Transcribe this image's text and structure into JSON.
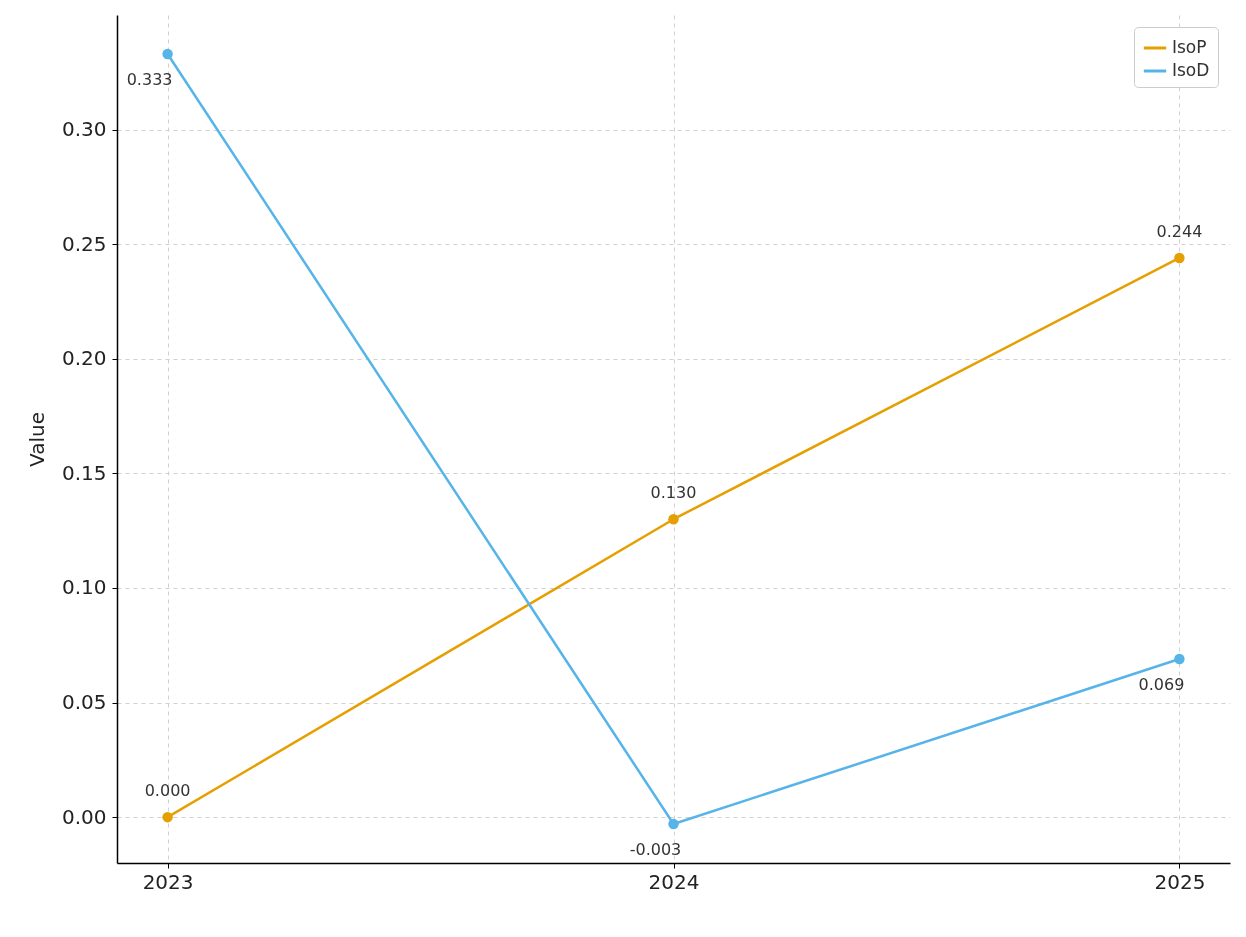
{
  "chart_data": {
    "type": "line",
    "ylabel": "Value",
    "categories": [
      "2023",
      "2024",
      "2025"
    ],
    "series": [
      {
        "name": "IsoP",
        "color": "#e69f00",
        "values": [
          0,
          0.13,
          0.244
        ],
        "value_labels": [
          "0.000",
          "0.130",
          "0.244"
        ]
      },
      {
        "name": "IsoD",
        "color": "#56b4e9",
        "values": [
          0.333,
          -0.003,
          0.069
        ],
        "value_labels": [
          "0.333",
          "-0.003",
          "0.069"
        ]
      }
    ],
    "ylim": [
      -0.02,
      0.35
    ],
    "yticks": [
      {
        "value": 0,
        "label": "0.00"
      },
      {
        "value": 0.05,
        "label": "0.05"
      },
      {
        "value": 0.1,
        "label": "0.10"
      },
      {
        "value": 0.15,
        "label": "0.15"
      },
      {
        "value": 0.2,
        "label": "0.20"
      },
      {
        "value": 0.25,
        "label": "0.25"
      },
      {
        "value": 0.3,
        "label": "0.30"
      }
    ],
    "grid": true,
    "legend": "top right",
    "marker": "circle",
    "line_style": "solid"
  }
}
